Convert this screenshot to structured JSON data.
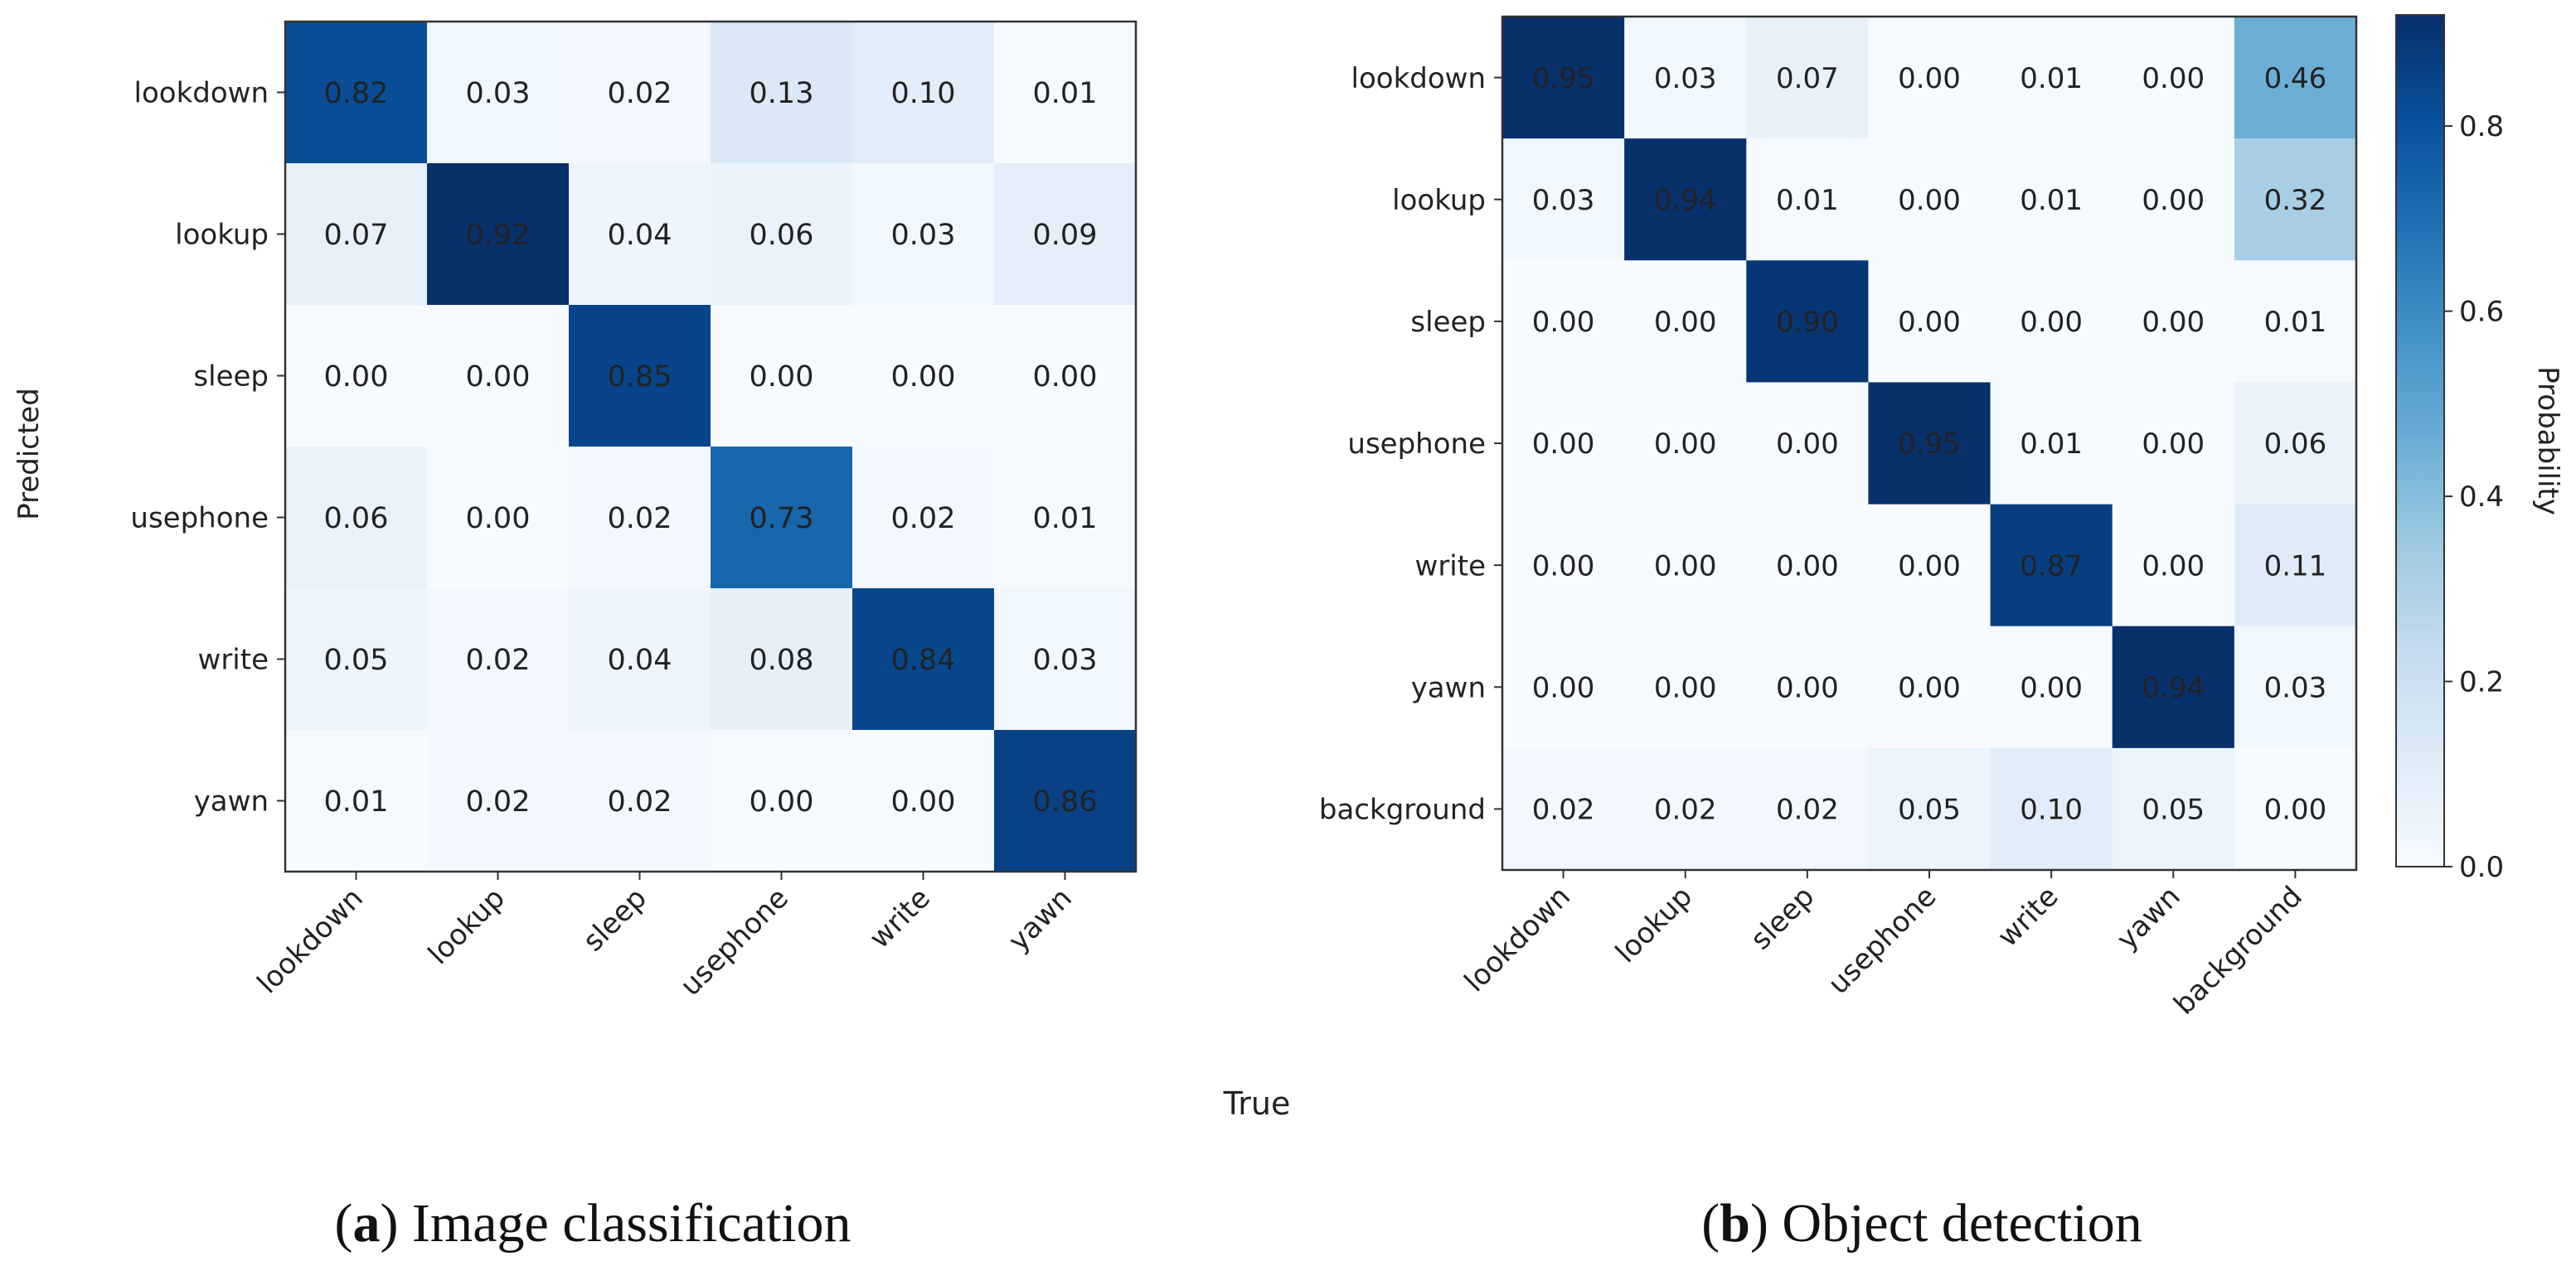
{
  "figure": {
    "shared_xlabel": "True",
    "captions": [
      {
        "label": "a",
        "text": "Image classification"
      },
      {
        "label": "b",
        "text": "Object detection"
      }
    ]
  },
  "chart_data": [
    {
      "type": "heatmap",
      "xlabel": "",
      "ylabel": "Predicted",
      "x_categories": [
        "lookdown",
        "lookup",
        "sleep",
        "usephone",
        "write",
        "yawn"
      ],
      "y_categories": [
        "lookdown",
        "lookup",
        "sleep",
        "usephone",
        "write",
        "yawn"
      ],
      "values": [
        [
          0.82,
          0.03,
          0.02,
          0.13,
          0.1,
          0.01
        ],
        [
          0.07,
          0.92,
          0.04,
          0.06,
          0.03,
          0.09
        ],
        [
          0.0,
          0.0,
          0.85,
          0.0,
          0.0,
          0.0
        ],
        [
          0.06,
          0.0,
          0.02,
          0.73,
          0.02,
          0.01
        ],
        [
          0.05,
          0.02,
          0.04,
          0.08,
          0.84,
          0.03
        ],
        [
          0.01,
          0.02,
          0.02,
          0.0,
          0.0,
          0.86
        ]
      ],
      "value_format": "0.00",
      "colormap": "Blues"
    },
    {
      "type": "heatmap",
      "xlabel": "",
      "ylabel": "",
      "x_categories": [
        "lookdown",
        "lookup",
        "sleep",
        "usephone",
        "write",
        "yawn",
        "background"
      ],
      "y_categories": [
        "lookdown",
        "lookup",
        "sleep",
        "usephone",
        "write",
        "yawn",
        "background"
      ],
      "values": [
        [
          0.95,
          0.03,
          0.07,
          0.0,
          0.01,
          0.0,
          0.46
        ],
        [
          0.03,
          0.94,
          0.01,
          0.0,
          0.01,
          0.0,
          0.32
        ],
        [
          0.0,
          0.0,
          0.9,
          0.0,
          0.0,
          0.0,
          0.01
        ],
        [
          0.0,
          0.0,
          0.0,
          0.95,
          0.01,
          0.0,
          0.06
        ],
        [
          0.0,
          0.0,
          0.0,
          0.0,
          0.87,
          0.0,
          0.11
        ],
        [
          0.0,
          0.0,
          0.0,
          0.0,
          0.0,
          0.94,
          0.03
        ],
        [
          0.02,
          0.02,
          0.02,
          0.05,
          0.1,
          0.05,
          0.0
        ]
      ],
      "value_format": "0.00",
      "colormap": "Blues",
      "colorbar": {
        "label": "Probability",
        "range": [
          0,
          0.92
        ],
        "ticks": [
          0.0,
          0.2,
          0.4,
          0.6,
          0.8
        ],
        "tick_labels": [
          "0.0",
          "0.2",
          "0.4",
          "0.6",
          "0.8"
        ]
      }
    }
  ]
}
